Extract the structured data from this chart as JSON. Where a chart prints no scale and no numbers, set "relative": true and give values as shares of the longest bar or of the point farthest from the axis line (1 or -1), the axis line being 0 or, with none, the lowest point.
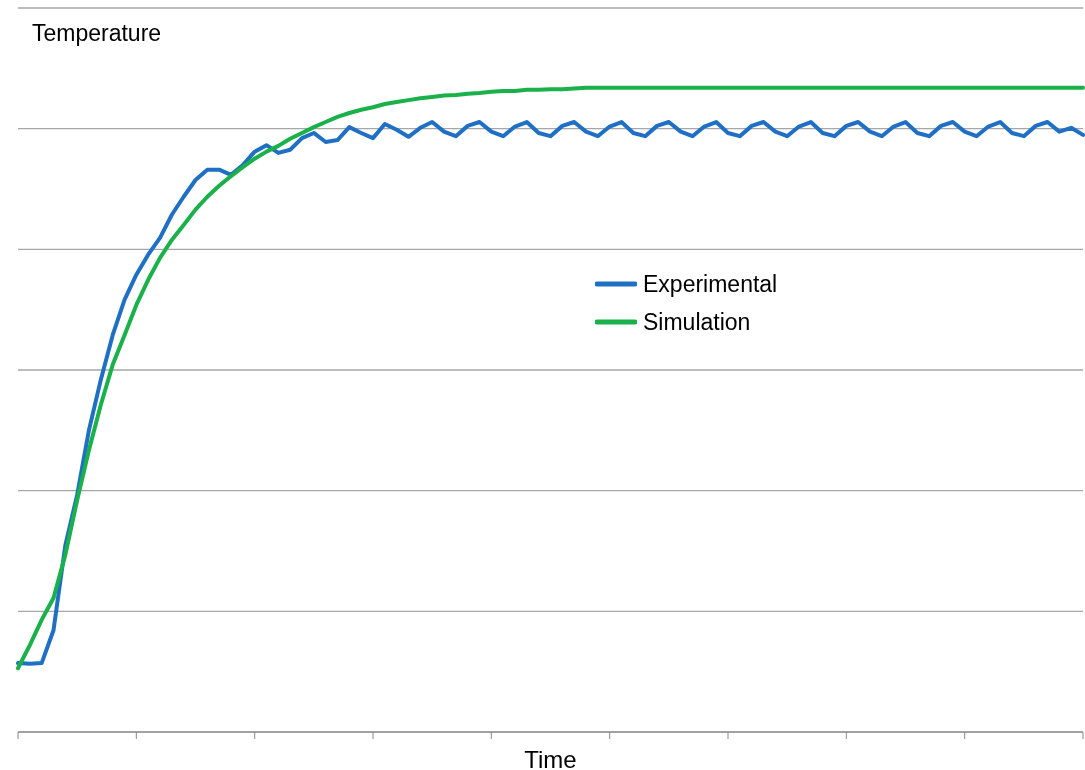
{
  "chart_data": {
    "type": "line",
    "relative": true,
    "xlabel": "Time",
    "ylabel": "Temperature",
    "grid": "y",
    "legend": "right",
    "marker": "none",
    "line_style": "solid",
    "categories": [
      null,
      null,
      null,
      null,
      null,
      null,
      null,
      null,
      null,
      null,
      null,
      null,
      null,
      null,
      null,
      null,
      null,
      null,
      null,
      null,
      null,
      null,
      null,
      null,
      null,
      null,
      null,
      null,
      null,
      null,
      null,
      null,
      null,
      null,
      null,
      null,
      null,
      null,
      null,
      null,
      null,
      null,
      null,
      null,
      null,
      null,
      null,
      null,
      null,
      null,
      null,
      null,
      null,
      null,
      null,
      null,
      null,
      null,
      null,
      null,
      null,
      null,
      null,
      null,
      null,
      null,
      null,
      null,
      null,
      null,
      null,
      null,
      null,
      null,
      null,
      null,
      null,
      null,
      null,
      null,
      null,
      null,
      null,
      null,
      null,
      null,
      null,
      null,
      null,
      null,
      null
    ],
    "series": [
      {
        "name": "Experimental",
        "color": "#1f6fc4",
        "values": [
          0.107,
          0.106,
          0.107,
          0.158,
          0.29,
          0.368,
          0.469,
          0.547,
          0.616,
          0.671,
          0.71,
          0.741,
          0.767,
          0.803,
          0.831,
          0.857,
          0.873,
          0.873,
          0.865,
          0.88,
          0.901,
          0.911,
          0.899,
          0.904,
          0.922,
          0.93,
          0.916,
          0.919,
          0.939,
          0.93,
          0.922,
          0.944,
          0.935,
          0.924,
          0.938,
          0.947,
          0.932,
          0.925,
          0.941,
          0.947,
          0.932,
          0.925,
          0.94,
          0.947,
          0.93,
          0.925,
          0.941,
          0.947,
          0.932,
          0.925,
          0.94,
          0.947,
          0.93,
          0.925,
          0.941,
          0.947,
          0.932,
          0.925,
          0.94,
          0.947,
          0.93,
          0.925,
          0.941,
          0.947,
          0.932,
          0.925,
          0.94,
          0.947,
          0.93,
          0.925,
          0.941,
          0.947,
          0.932,
          0.925,
          0.94,
          0.947,
          0.93,
          0.925,
          0.941,
          0.947,
          0.932,
          0.925,
          0.94,
          0.947,
          0.93,
          0.925,
          0.941,
          0.947,
          0.932,
          0.938,
          0.927
        ]
      },
      {
        "name": "Simulation",
        "color": "#1ab04a",
        "values": [
          0.099,
          0.135,
          0.174,
          0.208,
          0.275,
          0.36,
          0.438,
          0.508,
          0.57,
          0.616,
          0.663,
          0.702,
          0.736,
          0.764,
          0.787,
          0.811,
          0.831,
          0.848,
          0.863,
          0.877,
          0.89,
          0.901,
          0.91,
          0.921,
          0.93,
          0.939,
          0.947,
          0.955,
          0.961,
          0.966,
          0.97,
          0.975,
          0.978,
          0.981,
          0.984,
          0.986,
          0.988,
          0.989,
          0.991,
          0.992,
          0.994,
          0.995,
          0.995,
          0.997,
          0.997,
          0.998,
          0.998,
          0.999,
          1,
          1,
          1,
          1,
          1,
          1,
          1,
          1,
          1,
          1,
          1,
          1,
          1,
          1,
          1,
          1,
          1,
          1,
          1,
          1,
          1,
          1,
          1,
          1,
          1,
          1,
          1,
          1,
          1,
          1,
          1,
          1,
          1,
          1,
          1,
          1,
          1,
          1,
          1,
          1,
          1,
          1,
          1
        ]
      }
    ]
  }
}
